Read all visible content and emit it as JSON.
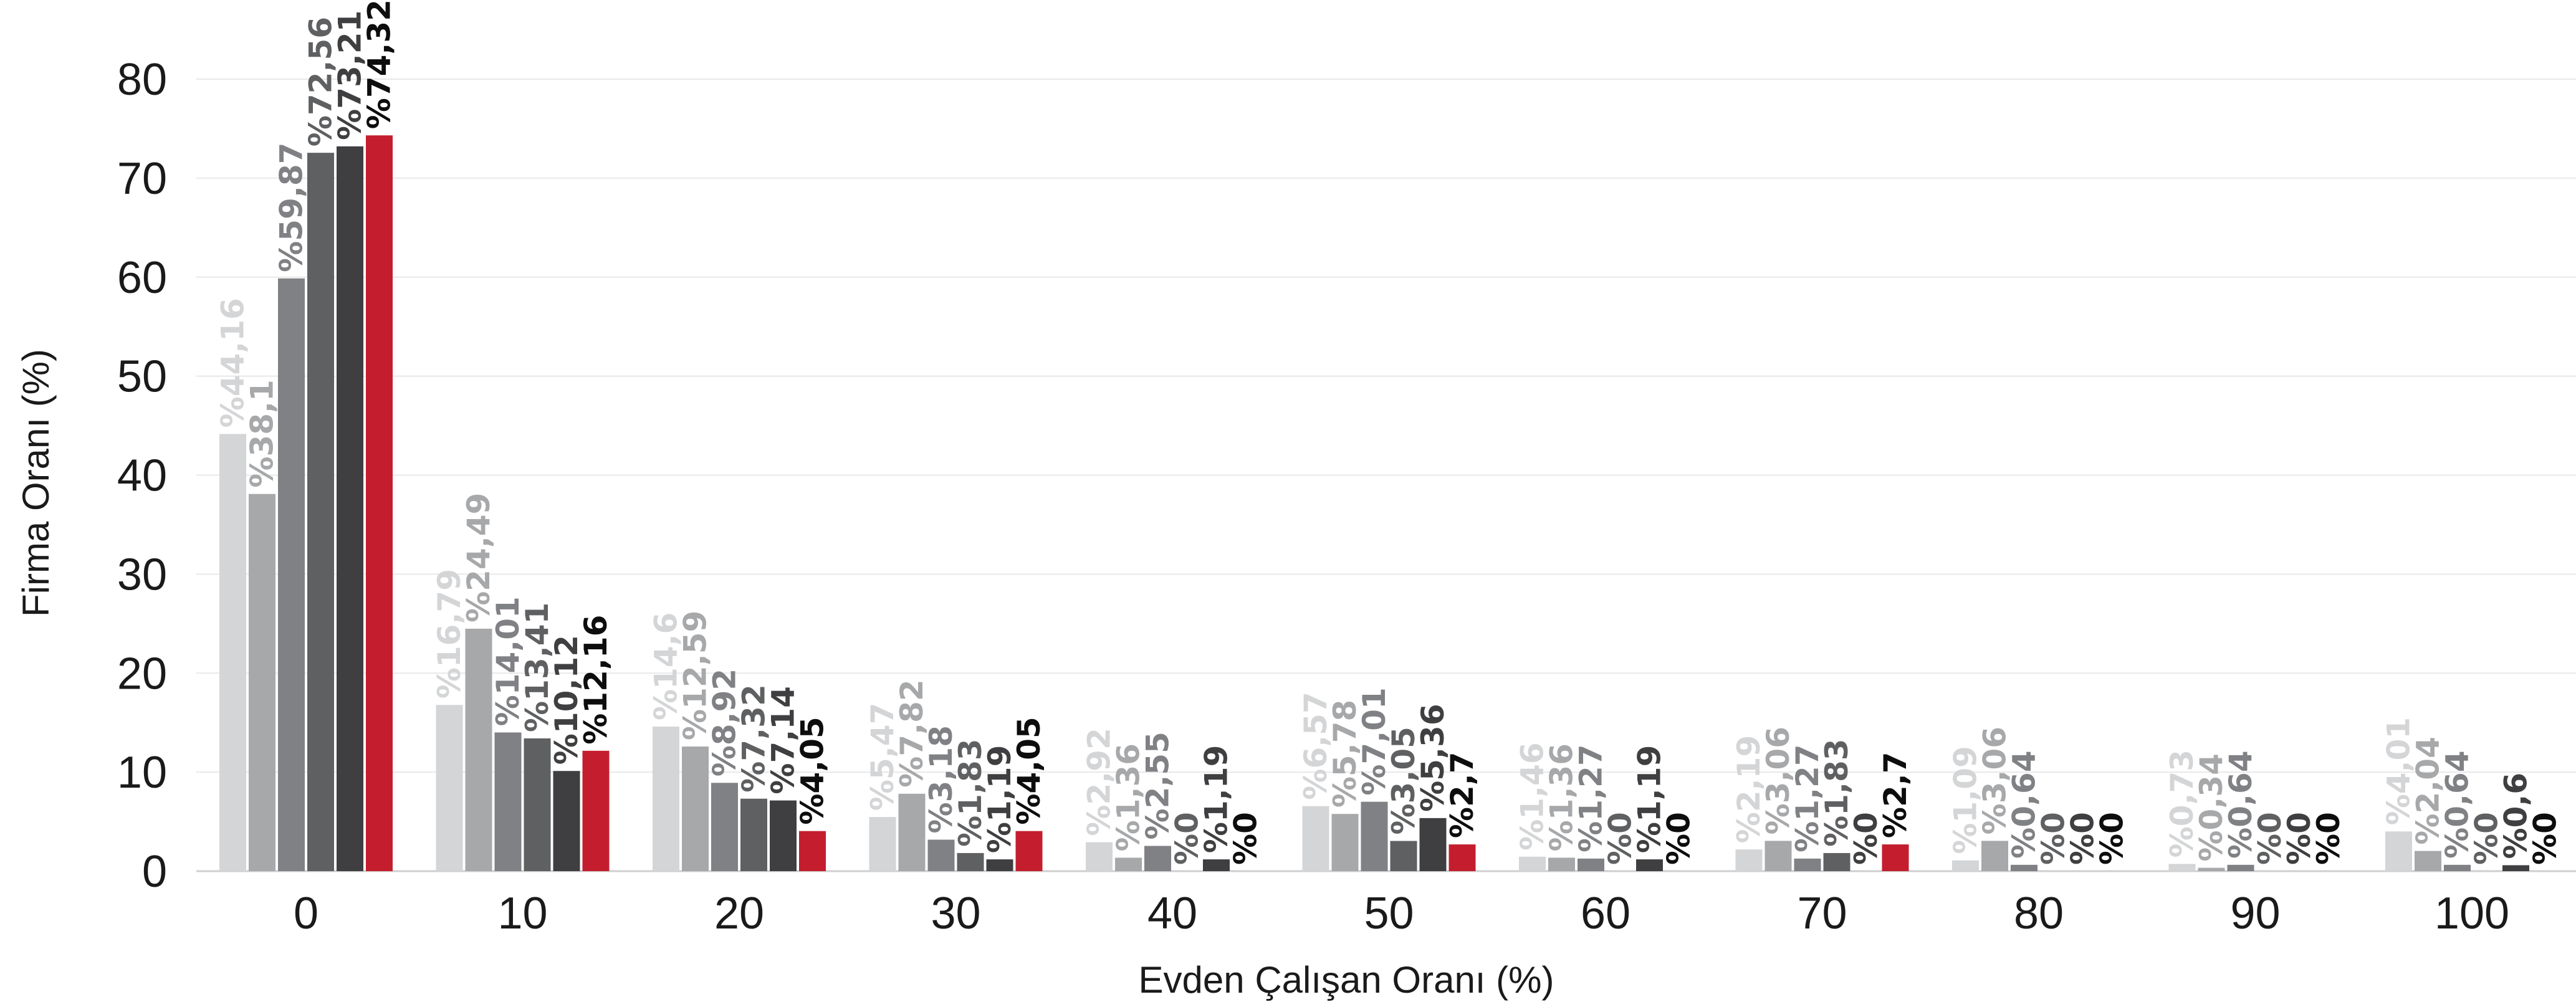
{
  "chart_data": {
    "type": "bar",
    "title": "",
    "xlabel": "Evden Çalışan Oranı (%)",
    "ylabel": "Firma Oranı (%)",
    "ylim": [
      0,
      80
    ],
    "yticks": [
      0,
      10,
      20,
      30,
      40,
      50,
      60,
      70,
      80
    ],
    "grid": "horizontal",
    "legend": "none",
    "categories": [
      "0",
      "10",
      "20",
      "30",
      "40",
      "50",
      "60",
      "70",
      "80",
      "90",
      "100"
    ],
    "series": [
      {
        "color": "#d4d5d7",
        "values": [
          44.16,
          16.79,
          14.6,
          5.47,
          2.92,
          6.57,
          1.46,
          2.19,
          1.09,
          0.73,
          4.01
        ],
        "labels": [
          "%44,16",
          "%16,79",
          "%14,6",
          "%5,47",
          "%2,92",
          "%6,57",
          "%1,46",
          "%2,19",
          "%1,09",
          "%0,73",
          "%4,01"
        ]
      },
      {
        "color": "#a7a8aa",
        "values": [
          38.1,
          24.49,
          12.59,
          7.82,
          1.36,
          5.78,
          1.36,
          3.06,
          3.06,
          0.34,
          2.04
        ],
        "labels": [
          "%38,1",
          "%24,49",
          "%12,59",
          "%7,82",
          "%1,36",
          "%5,78",
          "%1,36",
          "%3,06",
          "%3,06",
          "%0,34",
          "%2,04"
        ]
      },
      {
        "color": "#808184",
        "values": [
          59.87,
          14.01,
          8.92,
          3.18,
          2.55,
          7.01,
          1.27,
          1.27,
          0.64,
          0.64,
          0.64
        ],
        "labels": [
          "%59,87",
          "%14,01",
          "%8,92",
          "%3,18",
          "%2,55",
          "%7,01",
          "%1,27",
          "%1,27",
          "%0,64",
          "%0,64",
          "%0,64"
        ]
      },
      {
        "color": "#5f6062",
        "values": [
          72.56,
          13.41,
          7.32,
          1.83,
          0,
          3.05,
          0,
          1.83,
          0,
          0,
          0
        ],
        "labels": [
          "%72,56",
          "%13,41",
          "%7,32",
          "%1,83",
          "%0",
          "%3,05",
          "%0",
          "%1,83",
          "%0",
          "%0",
          "%0"
        ]
      },
      {
        "color": "#3f3f41",
        "values": [
          73.21,
          10.12,
          7.14,
          1.19,
          1.19,
          5.36,
          1.19,
          0,
          0,
          0,
          0.6
        ],
        "labels": [
          "%73,21",
          "%10,12",
          "%7,14",
          "%1,19",
          "%1,19",
          "%5,36",
          "%1,19",
          "%0",
          "%0",
          "%0",
          "%0,6"
        ]
      },
      {
        "color": "#c41e2e",
        "values": [
          74.32,
          12.16,
          4.05,
          4.05,
          0,
          2.7,
          0,
          2.7,
          0,
          0,
          0
        ],
        "labels": [
          "%74,32",
          "%12,16",
          "%4,05",
          "%4,05",
          "%0",
          "%2,7",
          "%0",
          "%2,7",
          "%0",
          "%0",
          "%0"
        ]
      }
    ],
    "label_colors": [
      "#d4d5d7",
      "#a7a8aa",
      "#808184",
      "#5f6062",
      "#3f3f41",
      "#0d0d0d"
    ]
  }
}
